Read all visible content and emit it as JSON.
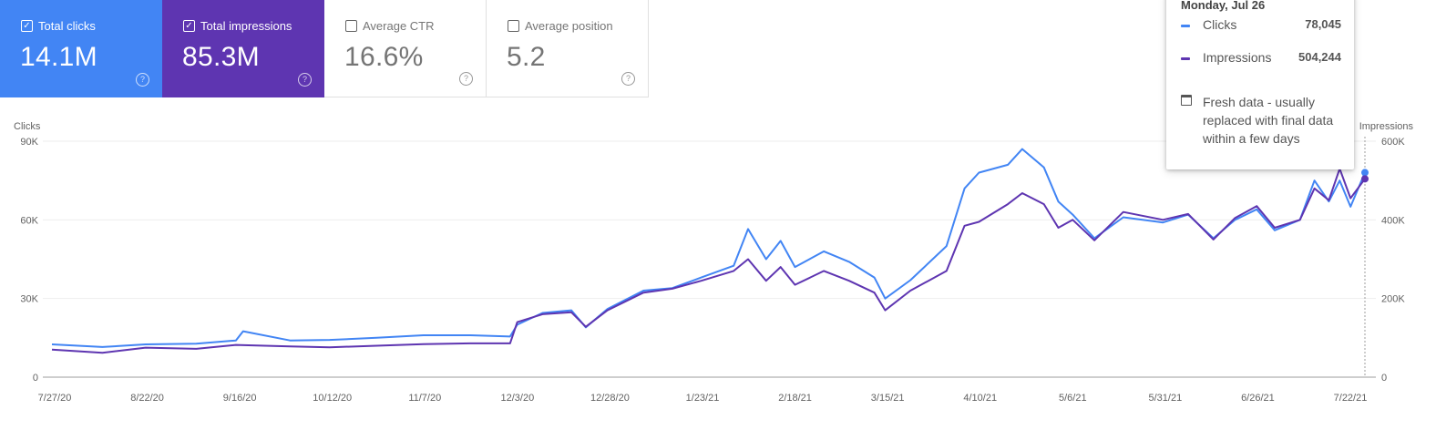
{
  "metrics": [
    {
      "label": "Total clicks",
      "value": "14.1M",
      "checked": true,
      "color": "#4285f4"
    },
    {
      "label": "Total impressions",
      "value": "85.3M",
      "checked": true,
      "color": "#5e35b1"
    },
    {
      "label": "Average CTR",
      "value": "16.6%",
      "checked": false
    },
    {
      "label": "Average position",
      "value": "5.2",
      "checked": false
    }
  ],
  "tooltip": {
    "date": "Monday, Jul 26",
    "rows": [
      {
        "label": "Clicks",
        "value": "78,045",
        "color": "#4285f4"
      },
      {
        "label": "Impressions",
        "value": "504,244",
        "color": "#5e35b1"
      }
    ],
    "note": "Fresh data - usually replaced with final data within a few days"
  },
  "chart_data": {
    "type": "line",
    "left_axis_label": "Clicks",
    "right_axis_label": "Impressions",
    "left_ticks": [
      "0",
      "30K",
      "60K",
      "90K"
    ],
    "right_ticks": [
      "0",
      "200K",
      "400K",
      "600K"
    ],
    "left_ylim": [
      0,
      90000
    ],
    "right_ylim": [
      0,
      600000
    ],
    "x_ticks": [
      "7/27/20",
      "8/22/20",
      "9/16/20",
      "10/12/20",
      "11/7/20",
      "12/3/20",
      "12/28/20",
      "1/23/21",
      "2/18/21",
      "3/15/21",
      "4/10/21",
      "5/6/21",
      "5/31/21",
      "6/26/21",
      "7/22/21"
    ],
    "x_range": [
      "2020-07-27",
      "2021-07-26"
    ],
    "grid": true,
    "series": [
      {
        "name": "Clicks",
        "axis": "left",
        "color": "#4285f4",
        "points": [
          [
            "2020-07-27",
            12500
          ],
          [
            "2020-08-10",
            11500
          ],
          [
            "2020-08-22",
            12500
          ],
          [
            "2020-09-05",
            12800
          ],
          [
            "2020-09-16",
            14000
          ],
          [
            "2020-09-18",
            17500
          ],
          [
            "2020-10-01",
            14000
          ],
          [
            "2020-10-12",
            14200
          ],
          [
            "2020-10-25",
            15000
          ],
          [
            "2020-11-07",
            16000
          ],
          [
            "2020-11-20",
            16000
          ],
          [
            "2020-12-01",
            15500
          ],
          [
            "2020-12-03",
            20000
          ],
          [
            "2020-12-10",
            24500
          ],
          [
            "2020-12-18",
            25500
          ],
          [
            "2020-12-22",
            19000
          ],
          [
            "2020-12-28",
            26000
          ],
          [
            "2021-01-07",
            33000
          ],
          [
            "2021-01-15",
            34000
          ],
          [
            "2021-01-23",
            38000
          ],
          [
            "2021-02-01",
            42500
          ],
          [
            "2021-02-05",
            56500
          ],
          [
            "2021-02-10",
            45000
          ],
          [
            "2021-02-14",
            52000
          ],
          [
            "2021-02-18",
            42000
          ],
          [
            "2021-02-26",
            48000
          ],
          [
            "2021-03-05",
            44000
          ],
          [
            "2021-03-12",
            38000
          ],
          [
            "2021-03-15",
            30000
          ],
          [
            "2021-03-22",
            37000
          ],
          [
            "2021-04-01",
            50000
          ],
          [
            "2021-04-06",
            72000
          ],
          [
            "2021-04-10",
            78000
          ],
          [
            "2021-04-18",
            81000
          ],
          [
            "2021-04-22",
            87000
          ],
          [
            "2021-04-28",
            80000
          ],
          [
            "2021-05-02",
            67000
          ],
          [
            "2021-05-06",
            62000
          ],
          [
            "2021-05-12",
            53000
          ],
          [
            "2021-05-20",
            61000
          ],
          [
            "2021-05-31",
            59000
          ],
          [
            "2021-06-07",
            62000
          ],
          [
            "2021-06-14",
            53000
          ],
          [
            "2021-06-20",
            60000
          ],
          [
            "2021-06-26",
            64000
          ],
          [
            "2021-07-01",
            56000
          ],
          [
            "2021-07-08",
            60000
          ],
          [
            "2021-07-12",
            75000
          ],
          [
            "2021-07-16",
            67000
          ],
          [
            "2021-07-19",
            75000
          ],
          [
            "2021-07-22",
            65000
          ],
          [
            "2021-07-26",
            78045
          ]
        ]
      },
      {
        "name": "Impressions",
        "axis": "right",
        "color": "#5e35b1",
        "points": [
          [
            "2020-07-27",
            70000
          ],
          [
            "2020-08-10",
            62000
          ],
          [
            "2020-08-22",
            75000
          ],
          [
            "2020-09-05",
            72000
          ],
          [
            "2020-09-16",
            82000
          ],
          [
            "2020-10-01",
            78000
          ],
          [
            "2020-10-12",
            76000
          ],
          [
            "2020-10-25",
            80000
          ],
          [
            "2020-11-07",
            84000
          ],
          [
            "2020-11-20",
            86000
          ],
          [
            "2020-12-01",
            86000
          ],
          [
            "2020-12-03",
            140000
          ],
          [
            "2020-12-10",
            160000
          ],
          [
            "2020-12-18",
            165000
          ],
          [
            "2020-12-22",
            128000
          ],
          [
            "2020-12-28",
            170000
          ],
          [
            "2021-01-07",
            215000
          ],
          [
            "2021-01-15",
            225000
          ],
          [
            "2021-01-23",
            245000
          ],
          [
            "2021-02-01",
            270000
          ],
          [
            "2021-02-05",
            300000
          ],
          [
            "2021-02-10",
            245000
          ],
          [
            "2021-02-14",
            280000
          ],
          [
            "2021-02-18",
            235000
          ],
          [
            "2021-02-26",
            270000
          ],
          [
            "2021-03-05",
            245000
          ],
          [
            "2021-03-12",
            215000
          ],
          [
            "2021-03-15",
            170000
          ],
          [
            "2021-03-22",
            220000
          ],
          [
            "2021-04-01",
            270000
          ],
          [
            "2021-04-06",
            385000
          ],
          [
            "2021-04-10",
            395000
          ],
          [
            "2021-04-18",
            440000
          ],
          [
            "2021-04-22",
            468000
          ],
          [
            "2021-04-28",
            440000
          ],
          [
            "2021-05-02",
            380000
          ],
          [
            "2021-05-06",
            400000
          ],
          [
            "2021-05-12",
            348000
          ],
          [
            "2021-05-20",
            420000
          ],
          [
            "2021-05-31",
            400000
          ],
          [
            "2021-06-07",
            415000
          ],
          [
            "2021-06-14",
            350000
          ],
          [
            "2021-06-20",
            405000
          ],
          [
            "2021-06-26",
            435000
          ],
          [
            "2021-07-01",
            380000
          ],
          [
            "2021-07-08",
            400000
          ],
          [
            "2021-07-12",
            480000
          ],
          [
            "2021-07-16",
            450000
          ],
          [
            "2021-07-19",
            530000
          ],
          [
            "2021-07-22",
            455000
          ],
          [
            "2021-07-26",
            504244
          ]
        ]
      }
    ]
  }
}
